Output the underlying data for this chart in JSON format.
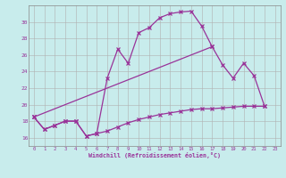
{
  "xlabel": "Windchill (Refroidissement éolien,°C)",
  "bg_color": "#c8ecec",
  "grid_color": "#b0b0b0",
  "line_color": "#993399",
  "ylim": [
    15.0,
    32.0
  ],
  "yticks": [
    16,
    18,
    20,
    22,
    24,
    26,
    28,
    30
  ],
  "xlim": [
    -0.5,
    23.5
  ],
  "xticks": [
    0,
    1,
    2,
    3,
    4,
    5,
    6,
    7,
    8,
    9,
    10,
    11,
    12,
    13,
    14,
    15,
    16,
    17,
    18,
    19,
    20,
    21,
    22,
    23
  ],
  "curve1_x": [
    0,
    1,
    2,
    3,
    4,
    5,
    6,
    7,
    8,
    9,
    10,
    11,
    12,
    13,
    14,
    15,
    16,
    17
  ],
  "curve1_y": [
    18.5,
    17.0,
    17.5,
    18.0,
    18.0,
    16.2,
    16.5,
    23.2,
    26.7,
    25.0,
    28.7,
    29.3,
    30.5,
    31.0,
    31.2,
    31.3,
    29.5,
    27.0
  ],
  "curve2_x": [
    0,
    17,
    18,
    19,
    20,
    21,
    22
  ],
  "curve2_y": [
    18.5,
    27.0,
    24.8,
    23.2,
    25.0,
    23.5,
    19.8
  ],
  "curve3_x": [
    0,
    1,
    2,
    3,
    4,
    5,
    6,
    7,
    8,
    9,
    10,
    11,
    12,
    13,
    14,
    15,
    16,
    17,
    18,
    19,
    20,
    21,
    22
  ],
  "curve3_y": [
    18.5,
    17.0,
    17.5,
    18.0,
    18.0,
    16.2,
    16.5,
    16.8,
    17.3,
    17.8,
    18.2,
    18.5,
    18.8,
    19.0,
    19.2,
    19.4,
    19.5,
    19.5,
    19.6,
    19.7,
    19.8,
    19.8,
    19.8
  ]
}
